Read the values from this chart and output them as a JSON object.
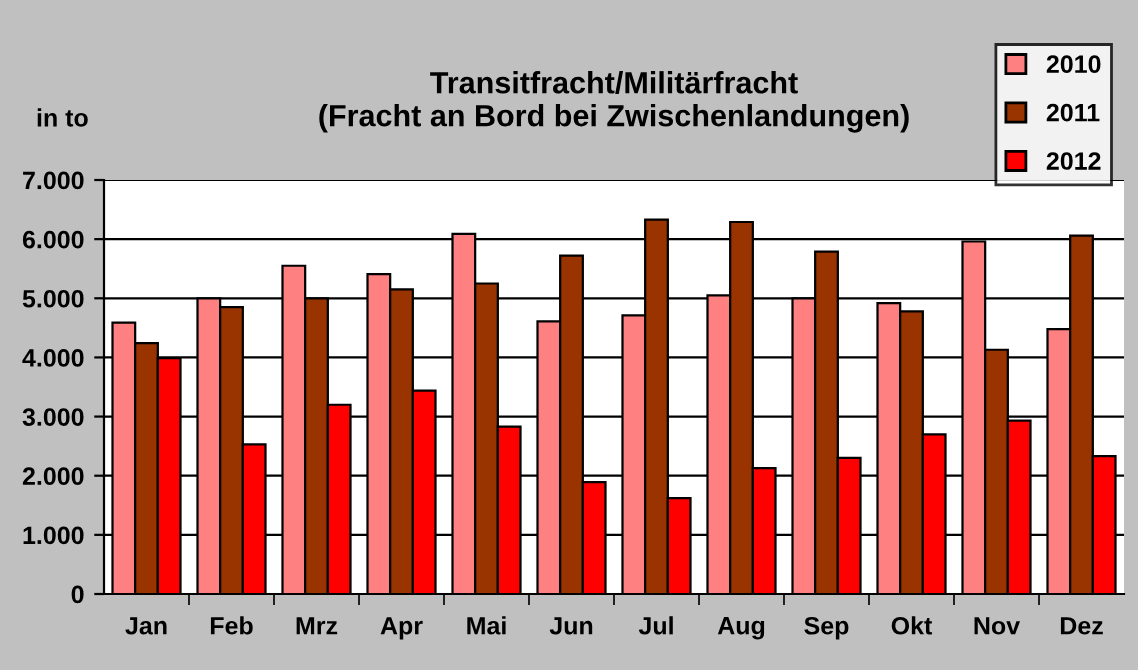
{
  "chart_data": {
    "type": "bar",
    "title": "Transitfracht/Militärfracht\n(Fracht an Bord bei Zwischenlandungen)",
    "ylabel": "in to",
    "categories": [
      "Jan",
      "Feb",
      "Mrz",
      "Apr",
      "Mai",
      "Jun",
      "Jul",
      "Aug",
      "Sep",
      "Okt",
      "Nov",
      "Dez"
    ],
    "series": [
      {
        "name": "2010",
        "color": "#ff8080",
        "values": [
          4590,
          5000,
          5550,
          5410,
          6090,
          4610,
          4710,
          5050,
          5000,
          4920,
          5960,
          4480
        ]
      },
      {
        "name": "2011",
        "color": "#993300",
        "values": [
          4240,
          4850,
          5000,
          5150,
          5250,
          5720,
          6330,
          6290,
          5790,
          4780,
          4130,
          6060
        ]
      },
      {
        "name": "2012",
        "color": "#ff0000",
        "values": [
          3990,
          2530,
          3200,
          3440,
          2830,
          1890,
          1620,
          2130,
          2300,
          2700,
          2930,
          2330
        ]
      }
    ],
    "ylim": [
      0,
      7000
    ],
    "yticks": [
      {
        "value": 0,
        "label": "0"
      },
      {
        "value": 1000,
        "label": "1.000"
      },
      {
        "value": 2000,
        "label": "2.000"
      },
      {
        "value": 3000,
        "label": "3.000"
      },
      {
        "value": 4000,
        "label": "4.000"
      },
      {
        "value": 5000,
        "label": "5.000"
      },
      {
        "value": 6000,
        "label": "6.000"
      },
      {
        "value": 7000,
        "label": "7.000"
      }
    ],
    "grid": "y",
    "legend": "top right"
  }
}
